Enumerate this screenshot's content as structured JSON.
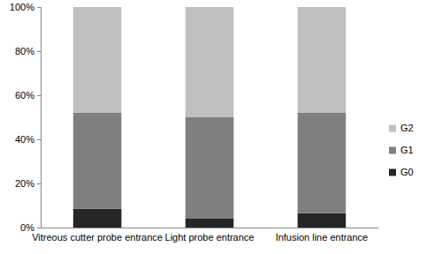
{
  "chart_data": {
    "type": "bar",
    "stacked": true,
    "grid": false,
    "legend": "right",
    "categories": [
      "Vitreous cutter probe entrance",
      "Light probe entrance",
      "Infusion line entrance"
    ],
    "series": [
      {
        "name": "G0",
        "color": "#262626",
        "values": [
          8.5,
          4,
          6.5
        ]
      },
      {
        "name": "G1",
        "color": "#7f7f7f",
        "values": [
          43.5,
          46,
          45.5
        ]
      },
      {
        "name": "G2",
        "color": "#bfbfbf",
        "values": [
          48,
          50,
          48
        ]
      }
    ],
    "ylim": [
      0,
      100
    ],
    "yticks": [
      {
        "value": 0,
        "label": "0%"
      },
      {
        "value": 20,
        "label": "20%"
      },
      {
        "value": 40,
        "label": "40%"
      },
      {
        "value": 60,
        "label": "60%"
      },
      {
        "value": 80,
        "label": "80%"
      },
      {
        "value": 100,
        "label": "100%"
      }
    ]
  }
}
